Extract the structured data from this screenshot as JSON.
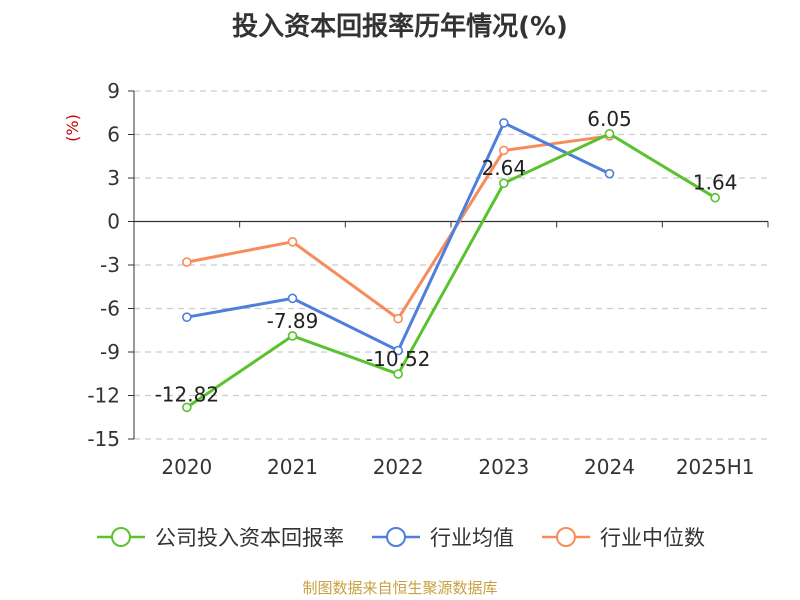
{
  "chart_data": {
    "type": "line",
    "title": "投入资本回报率历年情况(%)",
    "ylabel": "(%)",
    "xlabel": "",
    "categories": [
      "2020",
      "2021",
      "2022",
      "2023",
      "2024",
      "2025H1"
    ],
    "yticks": [
      "9",
      "6",
      "3",
      "0",
      "-3",
      "-6",
      "-9",
      "-12",
      "-15"
    ],
    "ylim": [
      -15,
      9
    ],
    "grid": true,
    "legend_position": "bottom",
    "series": [
      {
        "name": "公司投入资本回报率",
        "color": "#5ac22e",
        "values": [
          -12.82,
          -7.89,
          -10.52,
          2.64,
          6.05,
          1.64
        ],
        "labels": [
          "-12.82",
          "-7.89",
          "-10.52",
          "2.64",
          "6.05",
          "1.64"
        ]
      },
      {
        "name": "行业均值",
        "color": "#4e7fdc",
        "values": [
          -6.6,
          -5.3,
          -8.9,
          6.8,
          3.3,
          null
        ]
      },
      {
        "name": "行业中位数",
        "color": "#f78c5a",
        "values": [
          -2.8,
          -1.4,
          -6.7,
          4.9,
          5.9,
          null
        ]
      }
    ]
  },
  "source": "制图数据来自恒生聚源数据库"
}
